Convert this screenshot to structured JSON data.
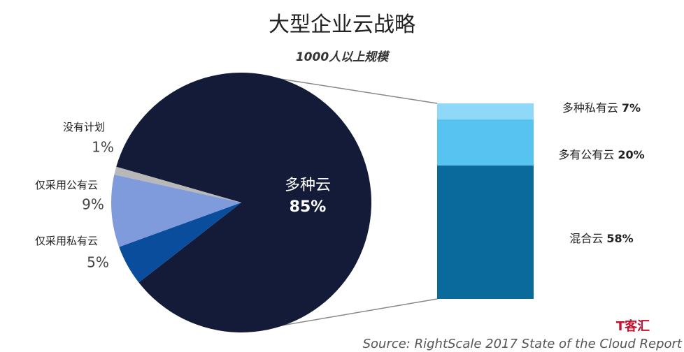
{
  "chart_data": {
    "type": "pie-bar",
    "title": "大型企业云战略",
    "subtitle": "1000人以上规模",
    "pie": {
      "categories": [
        "多种云",
        "仅采用私有云",
        "仅采用公有云",
        "没有计划"
      ],
      "values": [
        85,
        5,
        9,
        1
      ],
      "value_labels": [
        "85%",
        "5%",
        "9%",
        "1%"
      ],
      "colors": [
        "#141b38",
        "#0a4d9c",
        "#7f9bdc",
        "#b8b8b8"
      ]
    },
    "bar": {
      "categories": [
        "混合云",
        "多有公有云",
        "多种私有云"
      ],
      "values": [
        58,
        20,
        7
      ],
      "value_labels": [
        "58%",
        "20%",
        "7%"
      ],
      "colors": [
        "#0b6a9c",
        "#56c3f0",
        "#90d8f7"
      ]
    },
    "source": "Source: RightScale 2017 State of the Cloud Report",
    "watermark": "T客汇"
  }
}
